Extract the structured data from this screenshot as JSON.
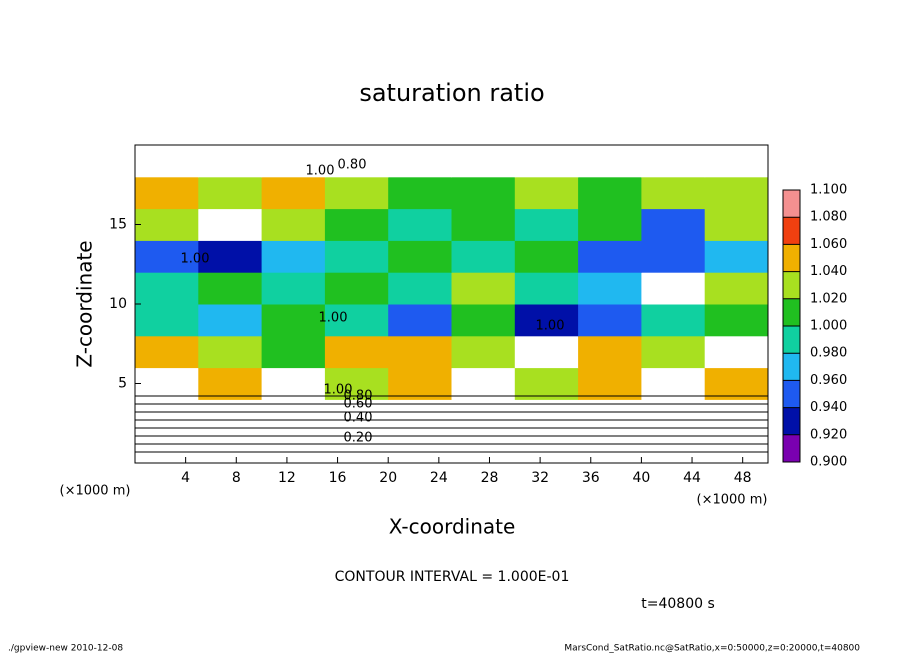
{
  "chart_data": {
    "type": "heatmap",
    "title": "saturation ratio",
    "x_label": "X-coordinate",
    "y_label": "Z-coordinate",
    "y_unit": "(×1000 m)",
    "x_unit": "(×1000 m)",
    "contour_note": "CONTOUR INTERVAL = 1.000E-01",
    "time_note": "t=40800 s",
    "footer_left": "./gpview-new  2010-12-08",
    "footer_right": "MarsCond_SatRatio.nc@SatRatio,x=0:50000,z=0:20000,t=40800",
    "xlim": [
      0,
      50
    ],
    "ylim": [
      0,
      20
    ],
    "xticks": [
      4,
      8,
      12,
      16,
      20,
      24,
      28,
      32,
      36,
      40,
      44,
      48
    ],
    "yticks": [
      5,
      10,
      15
    ],
    "z_values": [
      [
        0.2,
        0.2,
        0.2,
        0.2,
        0.2,
        0.2,
        0.2,
        0.2,
        0.2,
        0.2
      ],
      [
        0.6,
        0.6,
        0.6,
        0.6,
        0.6,
        0.6,
        0.6,
        0.6,
        0.6,
        0.6
      ],
      [
        1.12,
        1.05,
        1.12,
        1.03,
        1.06,
        1.12,
        1.04,
        1.05,
        1.12,
        1.06
      ],
      [
        1.06,
        1.04,
        1.02,
        1.06,
        1.05,
        1.03,
        1.12,
        1.06,
        1.04,
        1.12
      ],
      [
        1.0,
        0.98,
        1.01,
        1.0,
        0.96,
        1.02,
        0.94,
        0.95,
        1.0,
        1.02
      ],
      [
        1.0,
        1.01,
        0.99,
        1.02,
        1.0,
        1.04,
        1.0,
        0.97,
        1.12,
        1.04
      ],
      [
        0.96,
        0.94,
        0.97,
        1.0,
        1.01,
        1.0,
        1.02,
        0.96,
        0.95,
        0.97
      ],
      [
        1.04,
        1.12,
        1.03,
        1.01,
        1.0,
        1.02,
        1.0,
        1.01,
        0.96,
        1.03
      ],
      [
        1.05,
        1.03,
        1.06,
        1.04,
        1.02,
        1.01,
        1.03,
        1.02,
        1.04,
        1.03
      ],
      [
        0.7,
        0.7,
        0.7,
        0.7,
        0.7,
        0.7,
        0.7,
        0.7,
        0.7,
        0.7
      ]
    ],
    "colorbar_ticks": [
      {
        "value": 0.9,
        "label": "0.900"
      },
      {
        "value": 0.92,
        "label": "0.920"
      },
      {
        "value": 0.94,
        "label": "0.940"
      },
      {
        "value": 0.96,
        "label": "0.960"
      },
      {
        "value": 0.98,
        "label": "0.980"
      },
      {
        "value": 1.0,
        "label": "1.000"
      },
      {
        "value": 1.02,
        "label": "1.020"
      },
      {
        "value": 1.04,
        "label": "1.040"
      },
      {
        "value": 1.06,
        "label": "1.060"
      },
      {
        "value": 1.08,
        "label": "1.080"
      },
      {
        "value": 1.1,
        "label": "1.100"
      }
    ],
    "colors": [
      "#7a00b0",
      "#0010a8",
      "#1e5af0",
      "#20b8f0",
      "#10d0a0",
      "#20c020",
      "#a8e020",
      "#f0b000",
      "#f04010",
      "#f49090"
    ],
    "contour_labels": [
      {
        "value": 0.2,
        "label": "0.20"
      },
      {
        "value": 0.4,
        "label": "0.40"
      },
      {
        "value": 0.6,
        "label": "0.60"
      },
      {
        "value": 0.8,
        "label": "0.80"
      },
      {
        "value": 1.0,
        "label": "1.00"
      },
      {
        "value": 0.8,
        "label": "0.80"
      },
      {
        "value": 1.0,
        "label": "1.00"
      },
      {
        "value": 1.0,
        "label": "1.00"
      },
      {
        "value": 1.0,
        "label": "1.00"
      },
      {
        "value": 1.0,
        "label": "1.00"
      }
    ]
  }
}
